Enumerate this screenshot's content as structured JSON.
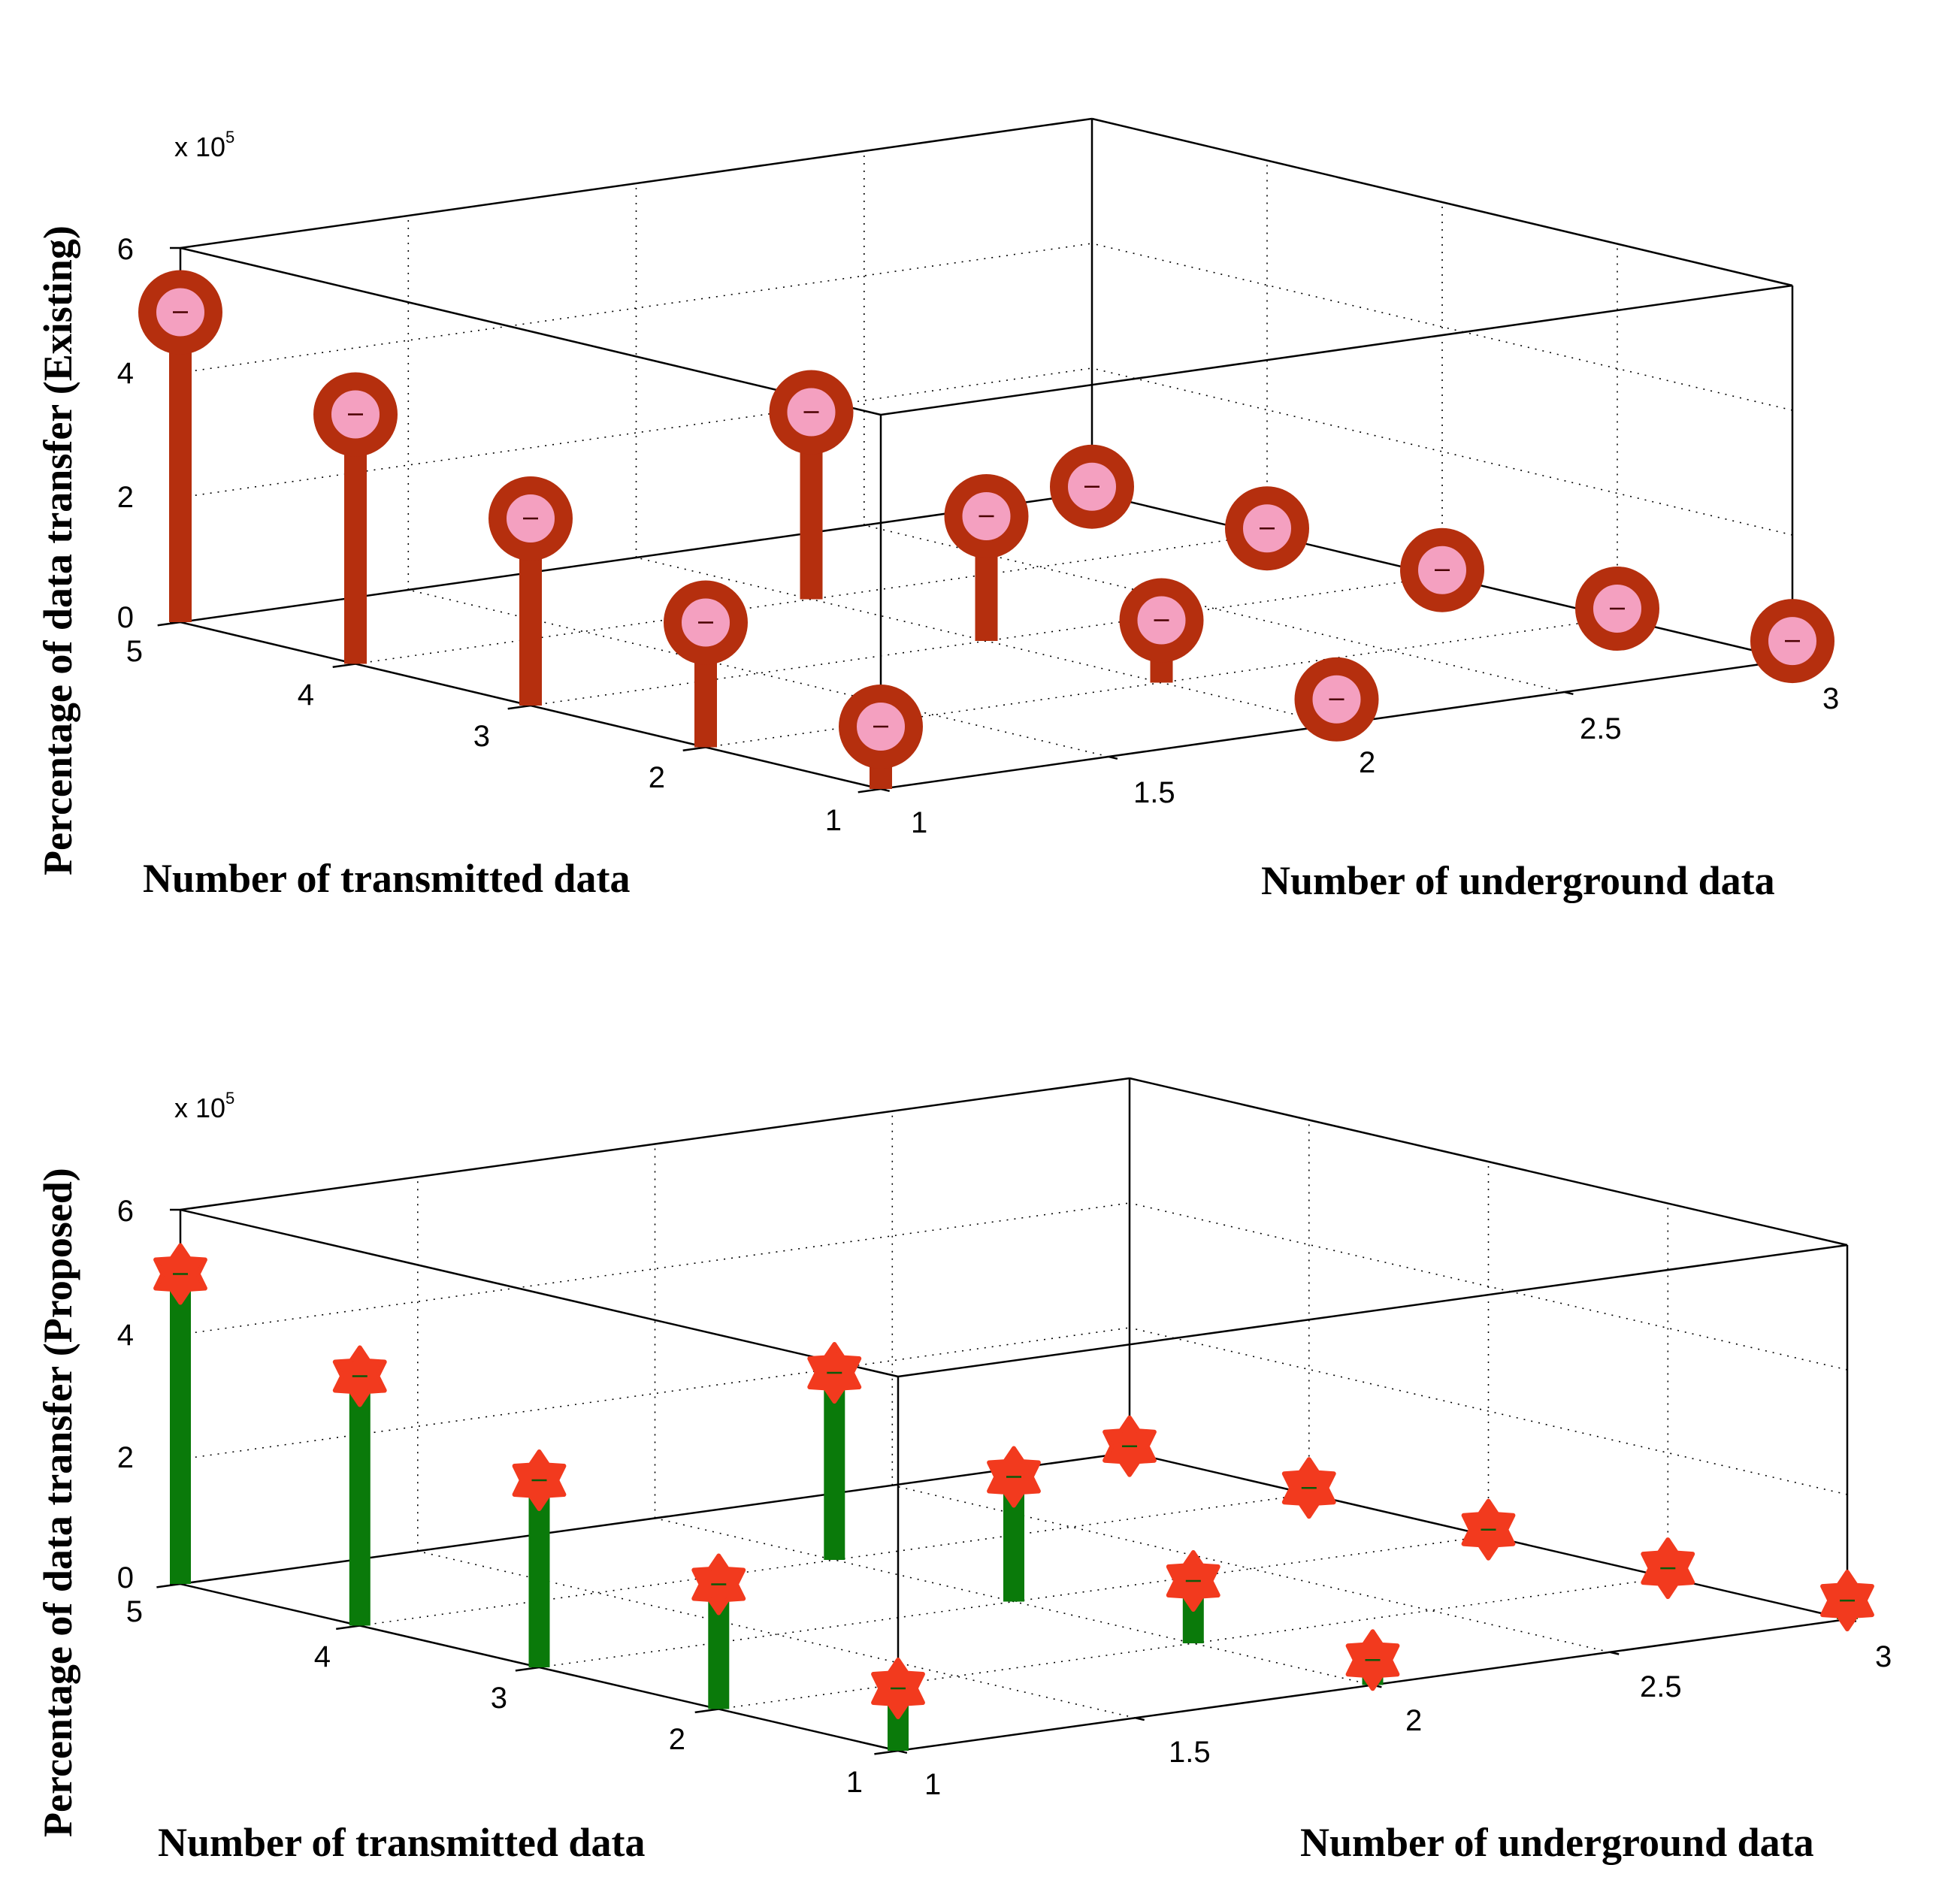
{
  "chart_data": [
    {
      "type": "stem3",
      "name": "existing",
      "zlabel": "Percentage of data transfer (Existing)",
      "xlabel": "Number of transmitted data",
      "ylabel": "Number of underground data",
      "exponent_label": "x 10",
      "exponent_power": "5",
      "z_ticks": [
        "0",
        "2",
        "4",
        "6"
      ],
      "x_ticks": [
        "1",
        "2",
        "3",
        "4",
        "5"
      ],
      "y_ticks": [
        "1",
        "1.5",
        "2",
        "2.5",
        "3"
      ],
      "zlim": [
        0,
        6
      ],
      "xlim": [
        1,
        5
      ],
      "ylim": [
        1,
        3
      ],
      "stem_color": "#b52f0e",
      "marker": "circle",
      "marker_face": "#f4a0c0",
      "points": [
        {
          "x": 5,
          "y": 1,
          "z": 4.97
        },
        {
          "x": 4,
          "y": 1,
          "z": 4.0
        },
        {
          "x": 3,
          "y": 1,
          "z": 3.0
        },
        {
          "x": 2,
          "y": 1,
          "z": 2.0
        },
        {
          "x": 1,
          "y": 1,
          "z": 1.0
        },
        {
          "x": 4,
          "y": 2,
          "z": 3.0
        },
        {
          "x": 3,
          "y": 2,
          "z": 2.0
        },
        {
          "x": 2,
          "y": 2,
          "z": 1.0
        },
        {
          "x": 1,
          "y": 2,
          "z": 0.4
        },
        {
          "x": 1,
          "y": 3,
          "z": 0.3
        },
        {
          "x": 2,
          "y": 3,
          "z": 0.15
        },
        {
          "x": 3,
          "y": 3,
          "z": 0.1
        },
        {
          "x": 4,
          "y": 3,
          "z": 0.1
        },
        {
          "x": 5,
          "y": 3,
          "z": 0.1
        }
      ]
    },
    {
      "type": "stem3",
      "name": "proposed",
      "zlabel": "Percentage of data transfer (Proposed)",
      "xlabel": "Number of transmitted data",
      "ylabel": "Number of underground data",
      "exponent_label": "x 10",
      "exponent_power": "5",
      "z_ticks": [
        "0",
        "2",
        "4",
        "6"
      ],
      "x_ticks": [
        "1",
        "2",
        "3",
        "4",
        "5"
      ],
      "y_ticks": [
        "1",
        "1.5",
        "2",
        "2.5",
        "3"
      ],
      "zlim": [
        0,
        6
      ],
      "xlim": [
        1,
        5
      ],
      "ylim": [
        1,
        3
      ],
      "stem_color": "#0a7a0a",
      "marker": "hexagram",
      "marker_face": "#f23a1e",
      "points": [
        {
          "x": 5,
          "y": 1,
          "z": 4.97
        },
        {
          "x": 4,
          "y": 1,
          "z": 4.0
        },
        {
          "x": 3,
          "y": 1,
          "z": 3.0
        },
        {
          "x": 2,
          "y": 1,
          "z": 2.0
        },
        {
          "x": 1,
          "y": 1,
          "z": 1.0
        },
        {
          "x": 4,
          "y": 2,
          "z": 3.0
        },
        {
          "x": 3,
          "y": 2,
          "z": 2.0
        },
        {
          "x": 2,
          "y": 2,
          "z": 1.0
        },
        {
          "x": 1,
          "y": 2,
          "z": 0.4
        },
        {
          "x": 1,
          "y": 3,
          "z": 0.3
        },
        {
          "x": 2,
          "y": 3,
          "z": 0.15
        },
        {
          "x": 3,
          "y": 3,
          "z": 0.1
        },
        {
          "x": 4,
          "y": 3,
          "z": 0.1
        },
        {
          "x": 5,
          "y": 3,
          "z": 0.1
        }
      ]
    }
  ]
}
